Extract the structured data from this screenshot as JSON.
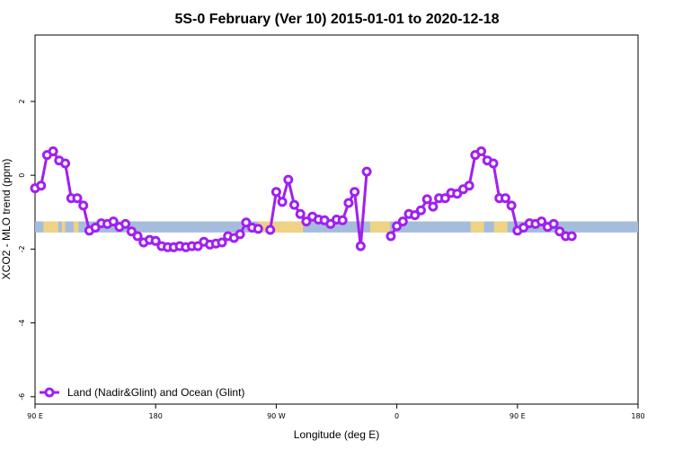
{
  "chart_data": {
    "type": "line",
    "title": "5S-0 February (Ver 10)   2015-01-01 to 2020-12-18",
    "xlabel": "Longitude (deg E)",
    "ylabel": "XCO2 - MLO trend (ppm)",
    "xlim": [
      90,
      450
    ],
    "ylim": [
      -6.2,
      3.8
    ],
    "x_ticks": [
      90,
      162,
      234,
      306,
      378,
      450
    ],
    "x_tick_labels": [
      "90 E",
      "180",
      "90 W",
      "0",
      "90 E",
      "180"
    ],
    "y_ticks": [
      -6,
      -4,
      -2,
      0,
      2
    ],
    "y_tick_labels": [
      "-6",
      "-4",
      "-2",
      "0",
      "2"
    ],
    "grid": false,
    "legend": {
      "position": "bottom-left",
      "entries": [
        "Land (Nadir&Glint) and Ocean (Glint)"
      ]
    },
    "colors": {
      "series": "#a020f0",
      "ocean_band": "#a6bcdc",
      "land_band": "#f7d57a"
    },
    "map_band": {
      "y_range": [
        -1.55,
        -1.25
      ]
    },
    "series": [
      {
        "name": "Land (Nadir&Glint) and Ocean (Glint)",
        "segments": [
          [
            [
              90.0,
              -0.35
            ],
            [
              93.6,
              -0.28
            ],
            [
              97.2,
              0.55
            ],
            [
              100.8,
              0.65
            ],
            [
              104.4,
              0.4
            ],
            [
              108.0,
              0.32
            ],
            [
              111.6,
              -0.62
            ],
            [
              115.2,
              -0.62
            ],
            [
              118.8,
              -0.82
            ],
            [
              122.4,
              -1.5
            ],
            [
              126.0,
              -1.42
            ],
            [
              129.6,
              -1.3
            ],
            [
              133.2,
              -1.32
            ],
            [
              136.8,
              -1.25
            ],
            [
              140.4,
              -1.4
            ],
            [
              144.0,
              -1.32
            ],
            [
              147.6,
              -1.52
            ],
            [
              151.2,
              -1.65
            ],
            [
              154.8,
              -1.82
            ],
            [
              158.4,
              -1.75
            ],
            [
              162.0,
              -1.78
            ],
            [
              165.6,
              -1.92
            ],
            [
              169.2,
              -1.95
            ],
            [
              172.8,
              -1.95
            ],
            [
              176.4,
              -1.92
            ],
            [
              180.0,
              -1.95
            ],
            [
              183.6,
              -1.92
            ],
            [
              187.2,
              -1.92
            ],
            [
              190.8,
              -1.8
            ],
            [
              194.4,
              -1.88
            ],
            [
              198.0,
              -1.85
            ],
            [
              201.6,
              -1.82
            ],
            [
              205.2,
              -1.65
            ],
            [
              208.8,
              -1.7
            ],
            [
              212.4,
              -1.6
            ],
            [
              216.0,
              -1.28
            ],
            [
              219.6,
              -1.42
            ],
            [
              223.2,
              -1.45
            ]
          ],
          [
            [
              230.4,
              -1.48
            ],
            [
              234.0,
              -0.45
            ],
            [
              237.6,
              -0.72
            ],
            [
              241.2,
              -0.12
            ],
            [
              244.8,
              -0.8
            ],
            [
              248.4,
              -1.05
            ],
            [
              252.0,
              -1.25
            ],
            [
              255.6,
              -1.12
            ],
            [
              259.2,
              -1.2
            ],
            [
              262.8,
              -1.22
            ],
            [
              266.4,
              -1.32
            ],
            [
              270.0,
              -1.2
            ],
            [
              273.6,
              -1.22
            ],
            [
              277.2,
              -0.75
            ],
            [
              280.8,
              -0.45
            ],
            [
              284.4,
              -1.92
            ],
            [
              288.0,
              0.1
            ]
          ],
          [
            [
              302.4,
              -1.65
            ],
            [
              306.0,
              -1.38
            ],
            [
              309.6,
              -1.25
            ],
            [
              313.2,
              -1.05
            ],
            [
              316.8,
              -1.08
            ],
            [
              320.4,
              -0.95
            ],
            [
              324.0,
              -0.65
            ],
            [
              327.6,
              -0.85
            ],
            [
              331.2,
              -0.62
            ],
            [
              334.8,
              -0.62
            ],
            [
              338.4,
              -0.48
            ],
            [
              342.0,
              -0.5
            ],
            [
              345.6,
              -0.38
            ],
            [
              349.2,
              -0.28
            ],
            [
              352.8,
              0.55
            ],
            [
              356.4,
              0.65
            ],
            [
              360.0,
              0.4
            ],
            [
              363.6,
              0.32
            ],
            [
              367.2,
              -0.62
            ],
            [
              370.8,
              -0.62
            ],
            [
              374.4,
              -0.82
            ],
            [
              378.0,
              -1.5
            ],
            [
              381.6,
              -1.42
            ],
            [
              385.2,
              -1.3
            ],
            [
              388.8,
              -1.32
            ],
            [
              392.4,
              -1.25
            ],
            [
              396.0,
              -1.4
            ],
            [
              399.6,
              -1.32
            ],
            [
              403.2,
              -1.52
            ],
            [
              406.8,
              -1.65
            ],
            [
              410.4,
              -1.65
            ]
          ]
        ]
      }
    ]
  }
}
